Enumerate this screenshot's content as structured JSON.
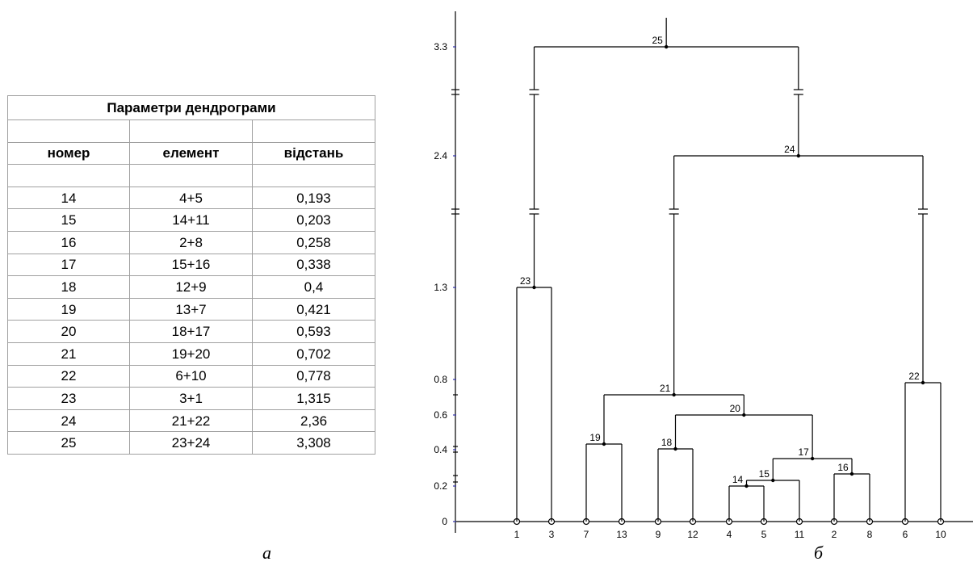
{
  "table": {
    "title": "Параметри дендрограми",
    "headers": [
      "номер",
      "елемент",
      "відстань"
    ],
    "rows": [
      [
        "14",
        "4+5",
        "0,193"
      ],
      [
        "15",
        "14+11",
        "0,203"
      ],
      [
        "16",
        "2+8",
        "0,258"
      ],
      [
        "17",
        "15+16",
        "0,338"
      ],
      [
        "18",
        "12+9",
        "0,4"
      ],
      [
        "19",
        "13+7",
        "0,421"
      ],
      [
        "20",
        "18+17",
        "0,593"
      ],
      [
        "21",
        "19+20",
        "0,702"
      ],
      [
        "22",
        "6+10",
        "0,778"
      ],
      [
        "23",
        "3+1",
        "1,315"
      ],
      [
        "24",
        "21+22",
        "2,36"
      ],
      [
        "25",
        "23+24",
        "3,308"
      ]
    ]
  },
  "captions": {
    "left": "а",
    "right": "б"
  },
  "dendrogram": {
    "axis_ticks": [
      "0",
      "0.2",
      "0.4",
      "0.6",
      "0.8",
      "1.3",
      "2.4",
      "3.3"
    ],
    "leaf_order": [
      "1",
      "3",
      "7",
      "13",
      "9",
      "12",
      "4",
      "5",
      "11",
      "2",
      "8",
      "6",
      "10"
    ],
    "merges": [
      {
        "id": "14",
        "left": "4",
        "right": "5"
      },
      {
        "id": "15",
        "left": "14",
        "right": "11"
      },
      {
        "id": "16",
        "left": "2",
        "right": "8"
      },
      {
        "id": "17",
        "left": "15",
        "right": "16"
      },
      {
        "id": "18",
        "left": "9",
        "right": "12"
      },
      {
        "id": "19",
        "left": "7",
        "right": "13"
      },
      {
        "id": "20",
        "left": "18",
        "right": "17"
      },
      {
        "id": "21",
        "left": "19",
        "right": "20"
      },
      {
        "id": "22",
        "left": "6",
        "right": "10"
      },
      {
        "id": "23",
        "left": "1",
        "right": "3"
      },
      {
        "id": "24",
        "left": "21",
        "right": "22"
      },
      {
        "id": "25",
        "left": "23",
        "right": "24"
      }
    ]
  }
}
